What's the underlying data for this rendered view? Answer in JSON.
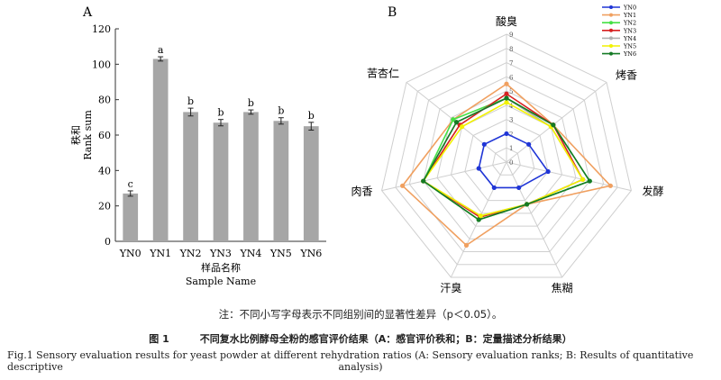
{
  "chart_data": [
    {
      "type": "bar",
      "panel_label": "A",
      "categories": [
        "YN0",
        "YN1",
        "YN2",
        "YN3",
        "YN4",
        "YN5",
        "YN6"
      ],
      "values": [
        27,
        103,
        73,
        67,
        73,
        68,
        65
      ],
      "errors": [
        1.5,
        1.2,
        2.2,
        1.8,
        1.2,
        1.8,
        2.2
      ],
      "significance": [
        "c",
        "a",
        "b",
        "b",
        "b",
        "b",
        "b"
      ],
      "ylabel_cn": "秩和",
      "ylabel_en": "Rank sum",
      "xlabel_cn": "样品名称",
      "xlabel_en": "Sample Name",
      "ylim": [
        0,
        120
      ],
      "yticks": [
        0,
        20,
        40,
        60,
        80,
        100,
        120
      ],
      "bar_color": "#a6a6a6"
    },
    {
      "type": "radar",
      "panel_label": "B",
      "axes": [
        "酸臭",
        "烤香",
        "发酵",
        "焦糊",
        "汗臭",
        "肉香",
        "苦杏仁"
      ],
      "rticks": [
        0,
        1,
        2,
        3,
        4,
        5,
        6,
        7,
        8,
        9
      ],
      "rmax": 9,
      "legend_position": "top-right",
      "series": [
        {
          "name": "YN0",
          "color": "#1f35d6",
          "values": [
            2.0,
            2.0,
            3.0,
            2.0,
            2.0,
            2.0,
            2.0
          ]
        },
        {
          "name": "YN1",
          "color": "#f0a060",
          "values": [
            5.5,
            4.2,
            7.5,
            3.3,
            6.5,
            7.5,
            4.8
          ]
        },
        {
          "name": "YN2",
          "color": "#45e045",
          "values": [
            4.5,
            4.2,
            6.0,
            3.3,
            4.5,
            6.0,
            4.8
          ]
        },
        {
          "name": "YN3",
          "color": "#d62020",
          "values": [
            4.8,
            4.2,
            5.5,
            3.3,
            4.3,
            6.0,
            4.2
          ]
        },
        {
          "name": "YN4",
          "color": "#b0b0b0",
          "values": [
            4.5,
            4.0,
            5.5,
            3.3,
            4.2,
            6.0,
            4.5
          ]
        },
        {
          "name": "YN5",
          "color": "#f2f200",
          "values": [
            4.2,
            4.0,
            5.5,
            3.3,
            4.2,
            6.0,
            4.0
          ]
        },
        {
          "name": "YN6",
          "color": "#157a25",
          "values": [
            4.5,
            4.2,
            6.0,
            3.3,
            4.5,
            6.0,
            4.5
          ]
        }
      ]
    }
  ],
  "caption": {
    "note": "注：不同小写字母表示不同组别间的显著性差异（p＜0.05）。",
    "figure_label": "图  1",
    "title_cn": "不同复水比例酵母全粉的感官评价结果（A：感官评价秩和；B：定量描述分析结果）",
    "title_en_line1": "Fig.1   Sensory evaluation results for yeast powder at different rehydration ratios (A: Sensory evaluation ranks; B: Results of quantitative descriptive",
    "title_en_line2": "analysis)"
  }
}
